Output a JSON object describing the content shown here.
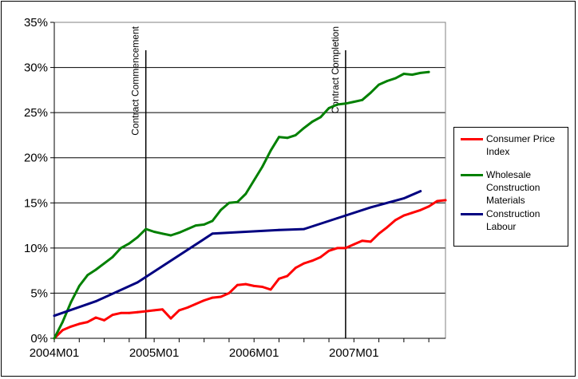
{
  "chart_data": {
    "type": "line",
    "title": "",
    "xlabel": "",
    "ylabel": "",
    "x_range": [
      "2004-01",
      "2007-12"
    ],
    "x_ticks": [
      "2004M01",
      "2005M01",
      "2006M01",
      "2007M01"
    ],
    "y_ticks": [
      "0%",
      "5%",
      "10%",
      "15%",
      "20%",
      "25%",
      "30%",
      "35%"
    ],
    "ylim": [
      0,
      35
    ],
    "grid": "horizontal",
    "legend_position": "right",
    "annotations": [
      {
        "label": "Contract Commencement",
        "x": "2004-12"
      },
      {
        "label": "Contract Completion",
        "x": "2006-12"
      }
    ],
    "series": [
      {
        "name": "Consumer Price Index",
        "color": "#ff0000",
        "points": [
          [
            "2004-01",
            0.0
          ],
          [
            "2004-02",
            0.9
          ],
          [
            "2004-03",
            1.3
          ],
          [
            "2004-04",
            1.6
          ],
          [
            "2004-05",
            1.8
          ],
          [
            "2004-06",
            2.3
          ],
          [
            "2004-07",
            2.0
          ],
          [
            "2004-08",
            2.6
          ],
          [
            "2004-09",
            2.8
          ],
          [
            "2004-10",
            2.8
          ],
          [
            "2004-11",
            2.9
          ],
          [
            "2004-12",
            3.0
          ],
          [
            "2005-01",
            3.1
          ],
          [
            "2005-02",
            3.2
          ],
          [
            "2005-03",
            2.2
          ],
          [
            "2005-04",
            3.1
          ],
          [
            "2005-05",
            3.4
          ],
          [
            "2005-06",
            3.8
          ],
          [
            "2005-07",
            4.2
          ],
          [
            "2005-08",
            4.5
          ],
          [
            "2005-09",
            4.6
          ],
          [
            "2005-10",
            5.0
          ],
          [
            "2005-11",
            5.9
          ],
          [
            "2005-12",
            6.0
          ],
          [
            "2006-01",
            5.8
          ],
          [
            "2006-02",
            5.7
          ],
          [
            "2006-03",
            5.4
          ],
          [
            "2006-04",
            6.6
          ],
          [
            "2006-05",
            6.9
          ],
          [
            "2006-06",
            7.8
          ],
          [
            "2006-07",
            8.3
          ],
          [
            "2006-08",
            8.6
          ],
          [
            "2006-09",
            9.0
          ],
          [
            "2006-10",
            9.7
          ],
          [
            "2006-11",
            10.0
          ],
          [
            "2006-12",
            10.0
          ],
          [
            "2007-01",
            10.4
          ],
          [
            "2007-02",
            10.8
          ],
          [
            "2007-03",
            10.7
          ],
          [
            "2007-04",
            11.6
          ],
          [
            "2007-05",
            12.3
          ],
          [
            "2007-06",
            13.1
          ],
          [
            "2007-07",
            13.6
          ],
          [
            "2007-08",
            13.9
          ],
          [
            "2007-09",
            14.2
          ],
          [
            "2007-10",
            14.6
          ],
          [
            "2007-11",
            15.2
          ],
          [
            "2007-12",
            15.3
          ]
        ]
      },
      {
        "name": "Wholesale Construction Materials",
        "color": "#008000",
        "points": [
          [
            "2004-01",
            0.0
          ],
          [
            "2004-02",
            1.8
          ],
          [
            "2004-03",
            4.0
          ],
          [
            "2004-04",
            5.8
          ],
          [
            "2004-05",
            7.0
          ],
          [
            "2004-06",
            7.6
          ],
          [
            "2004-07",
            8.3
          ],
          [
            "2004-08",
            9.0
          ],
          [
            "2004-09",
            10.0
          ],
          [
            "2004-10",
            10.5
          ],
          [
            "2004-11",
            11.2
          ],
          [
            "2004-12",
            12.1
          ],
          [
            "2005-01",
            11.8
          ],
          [
            "2005-02",
            11.6
          ],
          [
            "2005-03",
            11.4
          ],
          [
            "2005-04",
            11.7
          ],
          [
            "2005-05",
            12.1
          ],
          [
            "2005-06",
            12.5
          ],
          [
            "2005-07",
            12.6
          ],
          [
            "2005-08",
            13.0
          ],
          [
            "2005-09",
            14.2
          ],
          [
            "2005-10",
            15.0
          ],
          [
            "2005-11",
            15.1
          ],
          [
            "2005-12",
            16.0
          ],
          [
            "2006-01",
            17.5
          ],
          [
            "2006-02",
            19.0
          ],
          [
            "2006-03",
            20.8
          ],
          [
            "2006-04",
            22.3
          ],
          [
            "2006-05",
            22.2
          ],
          [
            "2006-06",
            22.5
          ],
          [
            "2006-07",
            23.3
          ],
          [
            "2006-08",
            24.0
          ],
          [
            "2006-09",
            24.5
          ],
          [
            "2006-10",
            25.5
          ],
          [
            "2006-11",
            25.9
          ],
          [
            "2006-12",
            26.0
          ],
          [
            "2007-01",
            26.2
          ],
          [
            "2007-02",
            26.4
          ],
          [
            "2007-03",
            27.2
          ],
          [
            "2007-04",
            28.1
          ],
          [
            "2007-05",
            28.5
          ],
          [
            "2007-06",
            28.8
          ],
          [
            "2007-07",
            29.3
          ],
          [
            "2007-08",
            29.2
          ],
          [
            "2007-09",
            29.4
          ],
          [
            "2007-10",
            29.5
          ]
        ]
      },
      {
        "name": "Construction Labour",
        "color": "#000080",
        "points": [
          [
            "2004-01",
            2.5
          ],
          [
            "2004-06",
            4.1
          ],
          [
            "2004-11",
            6.2
          ],
          [
            "2005-08",
            11.6
          ],
          [
            "2005-12",
            11.8
          ],
          [
            "2006-04",
            12.0
          ],
          [
            "2006-07",
            12.1
          ],
          [
            "2006-11",
            13.3
          ],
          [
            "2007-03",
            14.5
          ],
          [
            "2007-07",
            15.5
          ],
          [
            "2007-09",
            16.3
          ]
        ]
      }
    ]
  }
}
